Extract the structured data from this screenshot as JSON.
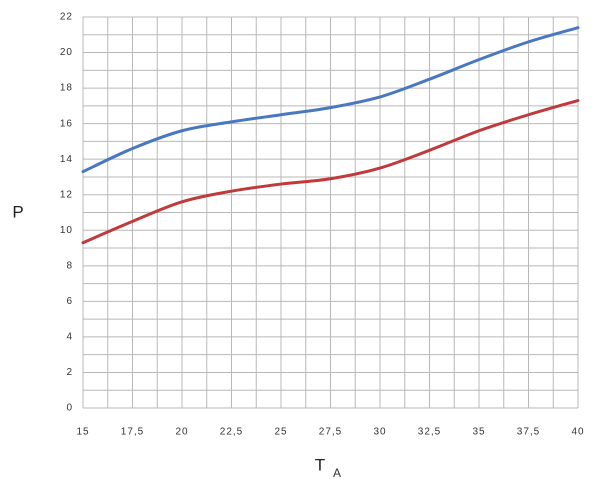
{
  "chart_data": {
    "type": "line",
    "xlabel": "T",
    "xlabel_subscript": "A",
    "ylabel": "P",
    "x": [
      15,
      17.5,
      20,
      22.5,
      25,
      27.5,
      30,
      32.5,
      35,
      37.5,
      40
    ],
    "series": [
      {
        "color": "#4a78c0",
        "values": [
          13.3,
          14.6,
          15.6,
          16.1,
          16.5,
          16.9,
          17.5,
          18.5,
          19.6,
          20.6,
          21.4
        ]
      },
      {
        "color": "#c0393b",
        "values": [
          9.3,
          10.5,
          11.6,
          12.2,
          12.6,
          12.9,
          13.5,
          14.5,
          15.6,
          16.5,
          17.3
        ]
      }
    ],
    "xlim": [
      15,
      40
    ],
    "ylim": [
      0,
      22
    ],
    "xticks": [
      15,
      {
        "value": 17.5,
        "label": "17,5"
      },
      20,
      {
        "value": 22.5,
        "label": "22,5"
      },
      25,
      {
        "value": 27.5,
        "label": "27,5"
      },
      30,
      {
        "value": 32.5,
        "label": "32,5"
      },
      35,
      {
        "value": 37.5,
        "label": "37,5"
      },
      40
    ],
    "yticks": [
      0,
      2,
      4,
      6,
      8,
      10,
      12,
      14,
      16,
      18,
      20,
      22
    ],
    "grid": true,
    "minor_grid": true
  }
}
